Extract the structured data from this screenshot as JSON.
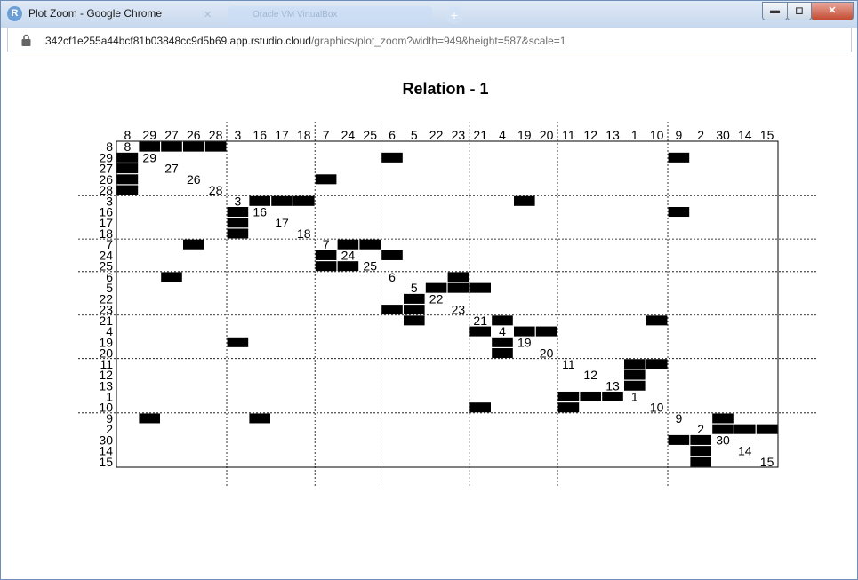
{
  "window": {
    "title": "Plot Zoom - Google Chrome",
    "app_icon_letter": "R",
    "background_tab_title": "Oracle VM VirtualBox",
    "minimize_label": "▬",
    "maximize_label": "◻",
    "close_label": "✕"
  },
  "address_bar": {
    "host": "342cf1e255a44bcf81b03848cc9d5b69.app.rstudio.cloud",
    "path": "/graphics/plot_zoom?width=949&height=587&scale=1"
  },
  "chart_data": {
    "type": "heatmap",
    "title": "Relation -  1",
    "order": [
      8,
      29,
      27,
      26,
      28,
      3,
      16,
      17,
      18,
      7,
      24,
      25,
      6,
      5,
      22,
      23,
      21,
      4,
      19,
      20,
      11,
      12,
      13,
      1,
      10,
      9,
      2,
      30,
      14,
      15
    ],
    "block_sizes": [
      5,
      4,
      3,
      4,
      4,
      5,
      5
    ],
    "ties": [
      [
        8,
        29
      ],
      [
        8,
        27
      ],
      [
        8,
        26
      ],
      [
        8,
        28
      ],
      [
        29,
        8
      ],
      [
        29,
        6
      ],
      [
        29,
        9
      ],
      [
        27,
        8
      ],
      [
        26,
        8
      ],
      [
        26,
        7
      ],
      [
        28,
        8
      ],
      [
        3,
        16
      ],
      [
        3,
        17
      ],
      [
        3,
        18
      ],
      [
        3,
        19
      ],
      [
        16,
        3
      ],
      [
        16,
        9
      ],
      [
        17,
        3
      ],
      [
        18,
        3
      ],
      [
        7,
        26
      ],
      [
        7,
        24
      ],
      [
        7,
        25
      ],
      [
        24,
        7
      ],
      [
        24,
        6
      ],
      [
        25,
        7
      ],
      [
        25,
        24
      ],
      [
        6,
        27
      ],
      [
        6,
        23
      ],
      [
        5,
        22
      ],
      [
        5,
        23
      ],
      [
        5,
        21
      ],
      [
        22,
        5
      ],
      [
        23,
        6
      ],
      [
        23,
        5
      ],
      [
        21,
        5
      ],
      [
        21,
        4
      ],
      [
        21,
        10
      ],
      [
        4,
        21
      ],
      [
        4,
        19
      ],
      [
        4,
        20
      ],
      [
        19,
        3
      ],
      [
        19,
        4
      ],
      [
        20,
        4
      ],
      [
        11,
        1
      ],
      [
        11,
        10
      ],
      [
        12,
        1
      ],
      [
        13,
        1
      ],
      [
        1,
        11
      ],
      [
        1,
        12
      ],
      [
        1,
        13
      ],
      [
        10,
        21
      ],
      [
        10,
        11
      ],
      [
        9,
        29
      ],
      [
        9,
        16
      ],
      [
        9,
        30
      ],
      [
        2,
        30
      ],
      [
        2,
        14
      ],
      [
        2,
        15
      ],
      [
        30,
        9
      ],
      [
        30,
        2
      ],
      [
        14,
        2
      ],
      [
        15,
        2
      ]
    ]
  }
}
